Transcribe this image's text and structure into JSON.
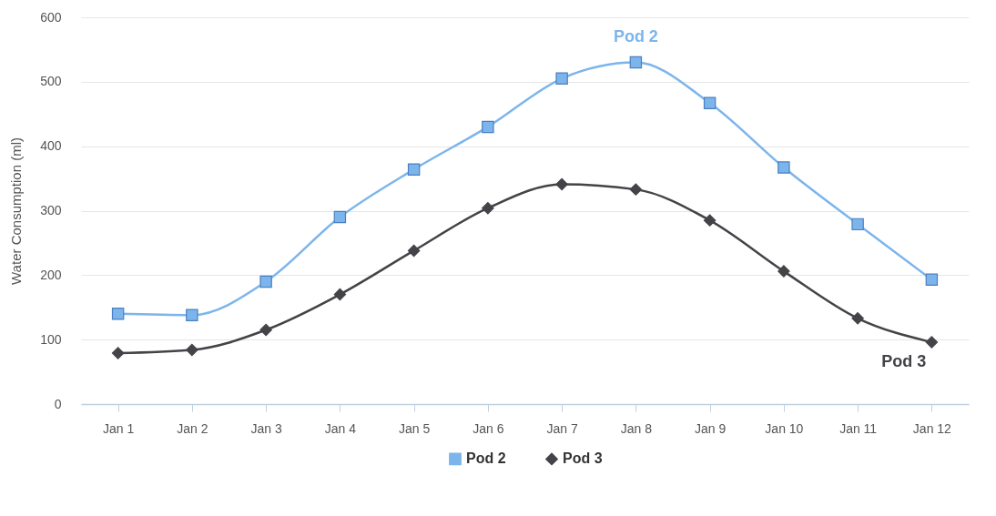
{
  "chart_data": {
    "type": "line",
    "ylabel": "Water Consumption (ml)",
    "categories": [
      "Jan 1",
      "Jan 2",
      "Jan 3",
      "Jan 4",
      "Jan 5",
      "Jan 6",
      "Jan 7",
      "Jan 8",
      "Jan 9",
      "Jan 10",
      "Jan 11",
      "Jan 12"
    ],
    "series": [
      {
        "name": "Pod 2",
        "color": "#7cb5ec",
        "marker": "square",
        "values": [
          140,
          138,
          190,
          290,
          364,
          430,
          505,
          530,
          467,
          367,
          279,
          193
        ]
      },
      {
        "name": "Pod 3",
        "color": "#434348",
        "marker": "diamond",
        "values": [
          79,
          84,
          115,
          170,
          238,
          304,
          341,
          333,
          285,
          206,
          133,
          96
        ]
      }
    ],
    "ylim": [
      0,
      600
    ],
    "yticks": [
      0,
      100,
      200,
      300,
      400,
      500,
      600
    ],
    "grid": "y",
    "legend": "bottom"
  }
}
